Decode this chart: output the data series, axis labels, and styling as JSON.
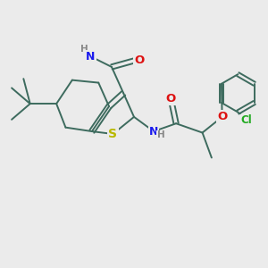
{
  "bg_color": "#ebebeb",
  "bond_color": "#3d6b5e",
  "bond_width": 1.4,
  "atom_colors": {
    "S": "#b8b800",
    "N": "#1a1aee",
    "O": "#dd1111",
    "Cl": "#22aa22",
    "C": "#3d6b5e",
    "H": "#888888"
  },
  "font_size": 8.5
}
